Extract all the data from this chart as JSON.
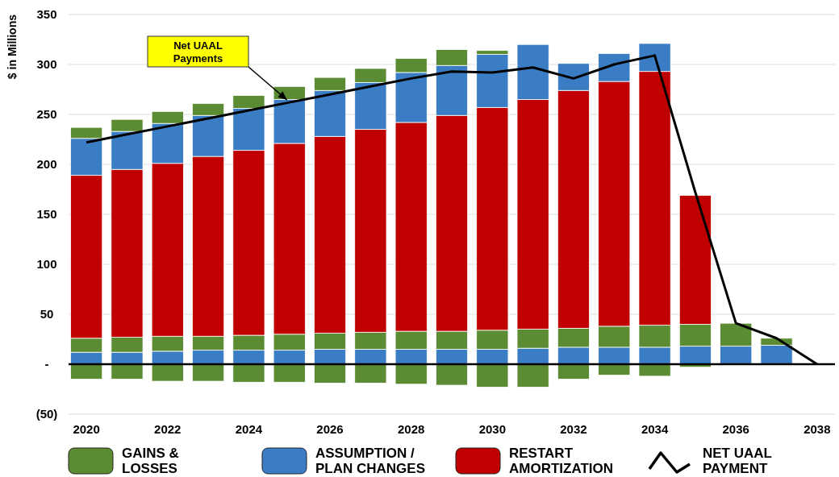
{
  "chart_data": {
    "type": "bar",
    "stacked": true,
    "ylabel": "$ in Millions",
    "categories": [
      "2020",
      null,
      "2022",
      null,
      "2024",
      null,
      "2026",
      null,
      "2028",
      null,
      "2030",
      null,
      "2032",
      null,
      "2034",
      null,
      "2036",
      null,
      "2038"
    ],
    "series": [
      {
        "name": "GAINS & LOSSES",
        "color": "#5b8c34",
        "values": [
          -15,
          -15,
          -17,
          -17,
          -18,
          -18,
          -19,
          -19,
          -20,
          -21,
          -23,
          -23,
          -15,
          -11,
          -12,
          -3,
          null,
          null,
          null
        ]
      },
      {
        "name": "ASSUMPTION / PLAN CHANGES",
        "color": "#3b7dc4",
        "values": [
          12,
          12,
          13,
          14,
          14,
          14,
          15,
          15,
          15,
          15,
          15,
          16,
          17,
          17,
          17,
          18,
          18,
          19,
          null
        ]
      },
      {
        "color": "#5b8c34",
        "values": [
          14,
          15,
          15,
          14,
          15,
          16,
          16,
          17,
          18,
          18,
          19,
          19,
          19,
          21,
          22,
          22,
          23,
          7,
          null
        ]
      },
      {
        "name": "RESTART AMORTIZATION",
        "color": "#c00000",
        "values": [
          163,
          168,
          173,
          180,
          185,
          191,
          197,
          203,
          209,
          216,
          223,
          230,
          238,
          245,
          254,
          129,
          null,
          null,
          null
        ]
      },
      {
        "color": "#3b7dc4",
        "values": [
          37,
          38,
          40,
          41,
          42,
          44,
          46,
          47,
          50,
          50,
          53,
          55,
          27,
          28,
          28,
          null,
          null,
          null,
          null
        ]
      },
      {
        "color": "#5b8c34",
        "values": [
          11,
          12,
          12,
          12,
          13,
          13,
          13,
          14,
          14,
          16,
          4,
          null,
          null,
          null,
          null,
          null,
          null,
          null,
          null
        ]
      },
      {
        "name": "NET UAAL PAYMENT",
        "type": "line",
        "color": "#000000",
        "values": [
          222,
          230,
          238,
          246,
          254,
          262,
          270,
          278,
          286,
          293,
          292,
          297,
          286,
          300,
          309,
          172,
          41,
          26,
          0
        ]
      }
    ],
    "ylim": [
      -50,
      350
    ],
    "yticks": [
      {
        "value": -50,
        "label": "(50)"
      },
      {
        "value": 0,
        "label": "-"
      },
      50,
      100,
      150,
      200,
      250,
      300,
      350
    ],
    "grid": "y",
    "legend": "bottom",
    "marker": "none",
    "line_style": "solid",
    "annotations": [
      "Net UAAL Payments"
    ]
  }
}
